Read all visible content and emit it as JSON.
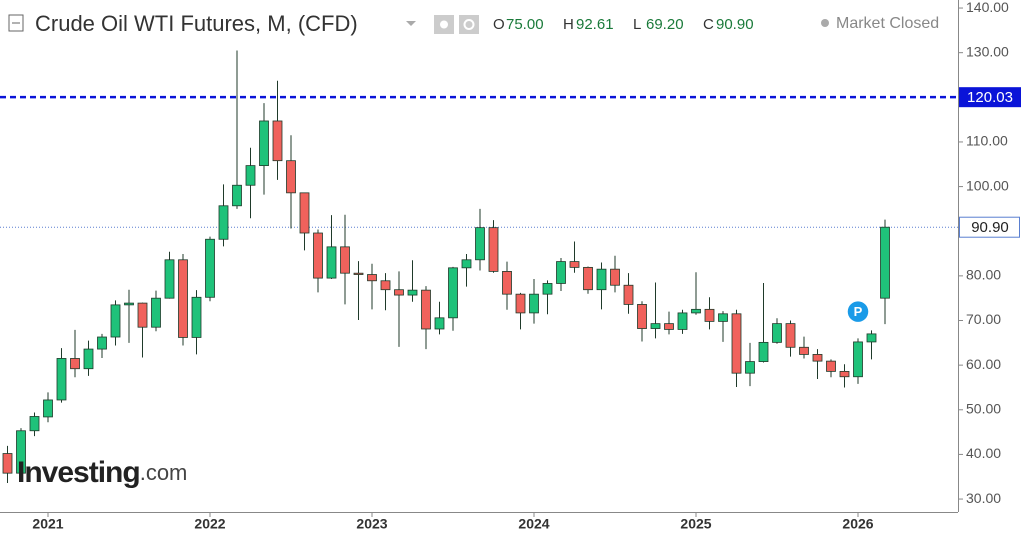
{
  "chart_data": {
    "type": "candlestick",
    "title": "Crude Oil WTI Futures, M, (CFD)",
    "status": "Market Closed",
    "watermark": {
      "brand": "Investing",
      "suffix": ".com"
    },
    "marker": {
      "text": "P",
      "index": 63,
      "value": 72
    },
    "ohlc_header": [
      {
        "name": "O",
        "value": "75.00"
      },
      {
        "name": "H",
        "value": "92.61"
      },
      {
        "name": "L",
        "value": "69.20"
      },
      {
        "name": "C",
        "value": "90.90"
      }
    ],
    "categories": [
      null,
      null,
      null,
      "2021",
      null,
      null,
      null,
      null,
      null,
      null,
      null,
      null,
      null,
      null,
      null,
      "2022",
      null,
      null,
      null,
      null,
      null,
      null,
      null,
      null,
      null,
      null,
      null,
      "2023",
      null,
      null,
      null,
      null,
      null,
      null,
      null,
      null,
      null,
      null,
      null,
      "2024",
      null,
      null,
      null,
      null,
      null,
      null,
      null,
      null,
      null,
      null,
      null,
      "2025",
      null,
      null,
      null,
      null,
      null,
      null,
      null,
      null,
      null,
      null,
      null,
      "2026",
      null,
      null
    ],
    "open": [
      40.2,
      35.8,
      45.3,
      48.4,
      52.2,
      61.5,
      59.2,
      63.6,
      66.3,
      73.5,
      73.9,
      68.5,
      75.0,
      83.6,
      66.2,
      75.2,
      88.2,
      95.7,
      100.3,
      104.7,
      114.7,
      105.8,
      98.6,
      89.6,
      79.5,
      86.5,
      80.6,
      80.3,
      78.9,
      76.9,
      75.7,
      76.8,
      68.1,
      70.6,
      81.8,
      83.6,
      90.8,
      81.0,
      75.9,
      71.7,
      75.9,
      78.3,
      83.2,
      81.9,
      76.9,
      81.5,
      77.9,
      73.6,
      68.2,
      69.3,
      68.0,
      71.7,
      72.5,
      69.8,
      71.5,
      58.2,
      60.8,
      65.1,
      69.3,
      64.0,
      62.4,
      60.9,
      58.6,
      57.4,
      65.2,
      75
    ],
    "high": [
      41.9,
      45.9,
      49.4,
      53.9,
      63.8,
      67.9,
      65.5,
      67.0,
      74.5,
      76.9,
      74.0,
      76.7,
      85.4,
      84.9,
      76.8,
      88.8,
      100.5,
      130.5,
      108.7,
      118.7,
      123.7,
      111.5,
      98.6,
      90.4,
      93.6,
      93.7,
      83.3,
      82.7,
      80.6,
      81.0,
      83.5,
      77.7,
      74.2,
      82.0,
      84.9,
      95.0,
      92.5,
      83.2,
      76.2,
      79.3,
      79.0,
      84.0,
      87.7,
      82.1,
      83.0,
      84.5,
      80.6,
      74.3,
      78.5,
      72.0,
      72.4,
      80.8,
      75.2,
      72.1,
      72.4,
      65.0,
      78.4,
      70.5,
      70.0,
      66.4,
      63.6,
      61.3,
      60.2,
      66.0,
      67.8,
      92.61
    ],
    "low": [
      33.6,
      34.9,
      44.1,
      47.2,
      51.6,
      57.3,
      57.6,
      61.6,
      64.4,
      65.0,
      61.7,
      67.6,
      74.9,
      64.4,
      62.4,
      74.3,
      86.6,
      95.0,
      92.9,
      98.2,
      101.5,
      90.6,
      85.7,
      76.3,
      79.3,
      73.6,
      70.1,
      72.5,
      72.3,
      64.1,
      74.2,
      63.6,
      66.9,
      67.7,
      77.6,
      81.2,
      80.7,
      72.4,
      68.0,
      69.3,
      71.4,
      76.6,
      80.7,
      76.0,
      72.5,
      76.3,
      71.5,
      65.3,
      66.0,
      66.9,
      67.0,
      71.3,
      68.0,
      65.2,
      55.1,
      55.3,
      60.6,
      64.8,
      61.9,
      61.5,
      56.9,
      57.3,
      55.0,
      55.8,
      61.3,
      69.2
    ],
    "close": [
      35.8,
      45.3,
      48.5,
      52.2,
      61.5,
      59.2,
      63.6,
      66.3,
      73.5,
      73.9,
      68.5,
      75.0,
      83.6,
      66.2,
      75.2,
      88.2,
      95.7,
      100.3,
      104.7,
      114.7,
      105.8,
      98.6,
      89.6,
      79.5,
      86.5,
      80.6,
      80.3,
      78.9,
      76.9,
      75.7,
      76.8,
      68.1,
      70.6,
      81.8,
      83.6,
      90.8,
      81.0,
      75.9,
      71.7,
      75.9,
      78.3,
      83.2,
      81.9,
      76.9,
      81.5,
      77.9,
      73.6,
      68.2,
      69.3,
      68.0,
      71.7,
      72.5,
      69.8,
      71.5,
      58.2,
      60.8,
      65.1,
      69.3,
      64.0,
      62.4,
      60.9,
      58.6,
      57.4,
      65.2,
      67.0,
      90.9
    ],
    "up_color": "#1fc27a",
    "down_color": "#f0625c",
    "ylim": [
      27.1,
      141.8
    ],
    "yticks": [
      {
        "value": 30,
        "label": "30.00"
      },
      {
        "value": 40,
        "label": "40.00"
      },
      {
        "value": 50,
        "label": "50.00"
      },
      {
        "value": 60,
        "label": "60.00"
      },
      {
        "value": 70,
        "label": "70.00"
      },
      {
        "value": 80,
        "label": "80.00"
      },
      {
        "value": 90,
        "label": "90.00"
      },
      {
        "value": 100,
        "label": "100.00"
      },
      {
        "value": 110,
        "label": "110.00"
      },
      {
        "value": 120,
        "label": "120.00"
      },
      {
        "value": 130,
        "label": "130.00"
      },
      {
        "value": 140,
        "label": "140.00"
      }
    ],
    "hlines": [
      {
        "value": 120.03,
        "color": "#0a14d8",
        "style": "dashed"
      },
      {
        "value": {
          "value": 90.9,
          "label": "90.90"
        },
        "color": "#5a7fd0",
        "style": "dotted"
      }
    ]
  }
}
